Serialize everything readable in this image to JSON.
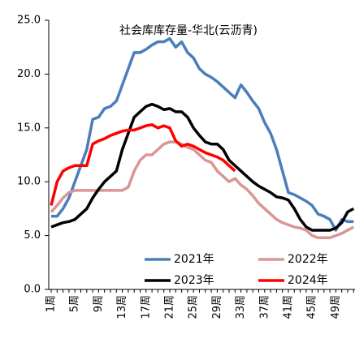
{
  "chart_data": {
    "type": "line",
    "title": "社会库库存量-华北(云沥青)",
    "categories": [
      "1周",
      null,
      null,
      null,
      "5周",
      null,
      null,
      null,
      "9周",
      null,
      null,
      null,
      "13周",
      null,
      null,
      null,
      "17周",
      null,
      null,
      null,
      "21周",
      null,
      null,
      null,
      "25周",
      null,
      null,
      null,
      "29周",
      null,
      null,
      null,
      "33周",
      null,
      null,
      null,
      "37周",
      null,
      null,
      null,
      "41周",
      null,
      null,
      null,
      "45周",
      null,
      null,
      null,
      "49周",
      null,
      null,
      null
    ],
    "series": [
      {
        "name": "2021年",
        "color": "#4a7ebb",
        "values": [
          6.8,
          6.8,
          7.5,
          8.5,
          10,
          11.5,
          13,
          15.8,
          16,
          16.8,
          17,
          17.5,
          19,
          20.5,
          22,
          22,
          22.3,
          22.7,
          23,
          23,
          23.3,
          22.5,
          23,
          22,
          21.5,
          20.5,
          20,
          19.7,
          19.3,
          18.8,
          18.3,
          17.8,
          19,
          18.3,
          17.5,
          16.8,
          15.5,
          14.5,
          13,
          11,
          9,
          8.8,
          8.5,
          8.2,
          7.8,
          7,
          6.8,
          6.5,
          5.5,
          6.5,
          6.3,
          6.3
        ]
      },
      {
        "name": "2022年",
        "color": "#d99694",
        "values": [
          7.2,
          7.8,
          8.5,
          9,
          9.2,
          9.2,
          9.2,
          9.2,
          9.2,
          9.2,
          9.2,
          9.2,
          9.2,
          9.5,
          11,
          12,
          12.5,
          12.5,
          13,
          13.5,
          13.7,
          13.7,
          13.5,
          13.2,
          13,
          12.5,
          12,
          11.8,
          11,
          10.5,
          10,
          10.3,
          9.7,
          9.3,
          8.7,
          8,
          7.5,
          7,
          6.5,
          6.2,
          6,
          5.8,
          5.7,
          5.5,
          5,
          4.8,
          4.8,
          4.8,
          5,
          5.2,
          5.5,
          5.8
        ]
      },
      {
        "name": "2023年",
        "color": "#000000",
        "values": [
          5.8,
          6,
          6.2,
          6.3,
          6.5,
          7,
          7.5,
          8.5,
          9.3,
          10,
          10.5,
          11,
          13,
          14.5,
          16,
          16.5,
          17,
          17.2,
          17,
          16.7,
          16.8,
          16.5,
          16.5,
          16,
          15,
          14.3,
          13.7,
          13.5,
          13.5,
          13,
          12,
          11.5,
          11,
          10.5,
          10,
          9.6,
          9.3,
          9,
          8.6,
          8.5,
          8.3,
          7.5,
          6.5,
          5.8,
          5.5,
          5.5,
          5.5,
          5.5,
          5.7,
          6.2,
          7.2,
          7.5
        ]
      },
      {
        "name": "2024年",
        "color": "#ff0000",
        "values": [
          7.8,
          10,
          11,
          11.3,
          11.5,
          11.5,
          11.5,
          13.5,
          13.8,
          14,
          14.3,
          14.5,
          14.7,
          14.8,
          14.8,
          15,
          15.2,
          15.3,
          15,
          15.2,
          15,
          13.8,
          13.3,
          13.5,
          13.3,
          13,
          12.7,
          12.5,
          12.3,
          12,
          11.5,
          11,
          null,
          null,
          null,
          null,
          null,
          null,
          null,
          null,
          null,
          null,
          null,
          null,
          null,
          null,
          null,
          null,
          null,
          null,
          null,
          null
        ]
      }
    ],
    "ylim": [
      0,
      25
    ],
    "yticks": [
      {
        "value": 0,
        "label": "0.0"
      },
      {
        "value": 5,
        "label": "5.0"
      },
      {
        "value": 10,
        "label": "10.0"
      },
      {
        "value": 15,
        "label": "15.0"
      },
      {
        "value": 20,
        "label": "20.0"
      },
      {
        "value": 25,
        "label": "25.0"
      }
    ]
  }
}
